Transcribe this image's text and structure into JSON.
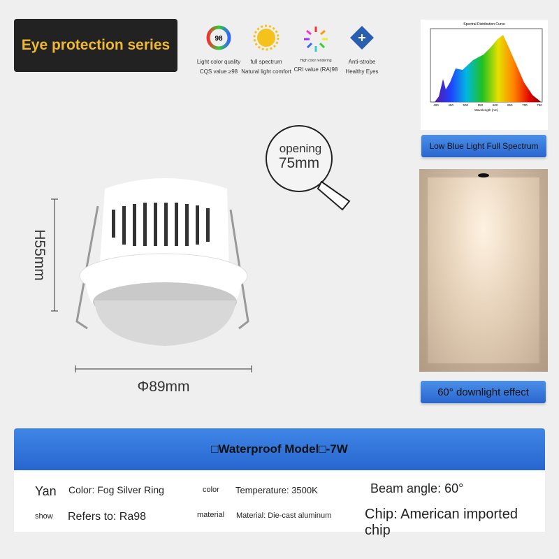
{
  "header": {
    "title": "Eye protection series"
  },
  "features": [
    {
      "badge": "98",
      "title": "Light color quality",
      "subtitle": "CQS value ≥98"
    },
    {
      "title": "full spectrum",
      "subtitle": "Natural light comfort"
    },
    {
      "title": "High color rendering",
      "subtitle": "CRI value (RA)98"
    },
    {
      "title": "Anti-strobe",
      "subtitle": "Healthy Eyes"
    }
  ],
  "spectrum": {
    "title": "Spectral Distribution Curve",
    "x_label": "Wavelength (nm)",
    "xticks": [
      "400",
      "450",
      "500",
      "550",
      "600",
      "650",
      "700",
      "750"
    ],
    "caption": "Low Blue Light Full Spectrum"
  },
  "product": {
    "opening_label": "opening",
    "opening_value": "75mm",
    "height": "H55mm",
    "diameter": "Φ89mm"
  },
  "effect": {
    "caption": "60° downlight effect"
  },
  "specs": {
    "banner": "□Waterproof Model□-7W",
    "rows": [
      [
        "Yan",
        "Color: Fog Silver Ring",
        "color",
        "Temperature: 3500K",
        "Beam angle: 60°"
      ],
      [
        "show",
        "Refers to: Ra98",
        "material",
        "Material: Die-cast aluminum",
        "Chip: American imported chip"
      ]
    ]
  }
}
